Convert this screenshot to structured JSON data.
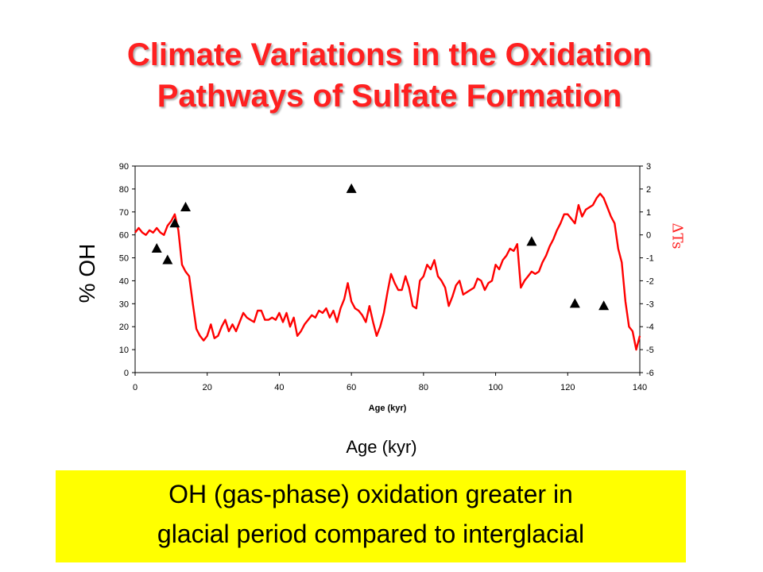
{
  "title": {
    "line1": "Climate Variations in the Oxidation",
    "line2": "Pathways of Sulfate Formation"
  },
  "caption_xlabel": "Age (kyr)",
  "banner": {
    "line1": "OH (gas-phase) oxidation greater in",
    "line2": "glacial period compared to interglacial",
    "background": "#ffff00"
  },
  "chart_data": {
    "type": "line",
    "xlabel": "Age (kyr)",
    "ylabel_left": "% OH",
    "ylabel_right": "ΔTs",
    "xlim": [
      0,
      140
    ],
    "ylim_left": [
      0,
      90
    ],
    "ylim_right": [
      -6,
      3
    ],
    "xticks": [
      0,
      20,
      40,
      60,
      80,
      100,
      120,
      140
    ],
    "yticks_left": [
      0,
      10,
      20,
      30,
      40,
      50,
      60,
      70,
      80,
      90
    ],
    "yticks_right": [
      3,
      2,
      1,
      0,
      -1,
      -2,
      -3,
      -4,
      -5,
      -6
    ],
    "series": [
      {
        "axis": "right",
        "color": "#ff0000",
        "x": [
          0,
          1,
          2,
          3,
          4,
          5,
          6,
          7,
          8,
          9,
          10,
          11,
          12,
          13,
          14,
          15,
          16,
          17,
          18,
          19,
          20,
          21,
          22,
          23,
          24,
          25,
          26,
          27,
          28,
          29,
          30,
          31,
          32,
          33,
          34,
          35,
          36,
          37,
          38,
          39,
          40,
          41,
          42,
          43,
          44,
          45,
          46,
          47,
          48,
          49,
          50,
          51,
          52,
          53,
          54,
          55,
          56,
          57,
          58,
          59,
          60,
          61,
          62,
          63,
          64,
          65,
          66,
          67,
          68,
          69,
          70,
          71,
          72,
          73,
          74,
          75,
          76,
          77,
          78,
          79,
          80,
          81,
          82,
          83,
          84,
          85,
          86,
          87,
          88,
          89,
          90,
          91,
          92,
          93,
          94,
          95,
          96,
          97,
          98,
          99,
          100,
          101,
          102,
          103,
          104,
          105,
          106,
          107,
          108,
          109,
          110,
          111,
          112,
          113,
          114,
          115,
          116,
          117,
          118,
          119,
          120,
          121,
          122,
          123,
          124,
          125,
          126,
          127,
          128,
          129,
          130,
          131,
          132,
          133,
          134,
          135,
          136,
          137,
          138,
          139,
          140
        ],
        "values": [
          0.1,
          0.3,
          0.1,
          0.0,
          0.2,
          0.1,
          0.3,
          0.1,
          0.0,
          0.4,
          0.6,
          0.9,
          0.2,
          -1.3,
          -1.6,
          -1.8,
          -3.0,
          -4.1,
          -4.4,
          -4.6,
          -4.4,
          -3.9,
          -4.5,
          -4.4,
          -4.0,
          -3.7,
          -4.2,
          -3.9,
          -4.2,
          -3.8,
          -3.4,
          -3.6,
          -3.7,
          -3.8,
          -3.3,
          -3.3,
          -3.7,
          -3.7,
          -3.6,
          -3.7,
          -3.4,
          -3.8,
          -3.4,
          -4.0,
          -3.6,
          -4.4,
          -4.2,
          -3.9,
          -3.7,
          -3.5,
          -3.6,
          -3.3,
          -3.4,
          -3.2,
          -3.6,
          -3.3,
          -3.8,
          -3.2,
          -2.8,
          -2.1,
          -2.9,
          -3.2,
          -3.3,
          -3.5,
          -3.8,
          -3.1,
          -3.8,
          -4.4,
          -4.0,
          -3.4,
          -2.5,
          -1.7,
          -2.1,
          -2.4,
          -2.4,
          -1.8,
          -2.3,
          -3.1,
          -3.2,
          -2.0,
          -1.8,
          -1.3,
          -1.5,
          -1.1,
          -1.8,
          -2.0,
          -2.3,
          -3.1,
          -2.7,
          -2.2,
          -2.0,
          -2.6,
          -2.5,
          -2.4,
          -2.3,
          -1.9,
          -2.0,
          -2.4,
          -2.1,
          -2.0,
          -1.3,
          -1.5,
          -1.1,
          -0.9,
          -0.6,
          -0.7,
          -0.4,
          -2.3,
          -2.0,
          -1.8,
          -1.6,
          -1.7,
          -1.6,
          -1.2,
          -0.9,
          -0.5,
          -0.2,
          0.2,
          0.5,
          0.9,
          0.9,
          0.7,
          0.5,
          1.3,
          0.8,
          1.1,
          1.2,
          1.3,
          1.6,
          1.8,
          1.6,
          1.2,
          0.8,
          0.5,
          -0.6,
          -1.2,
          -2.9,
          -4.0,
          -4.2,
          -5.0,
          -4.4
        ]
      }
    ],
    "markers": {
      "shape": "triangle",
      "color": "#000000",
      "axis": "left",
      "points": [
        [
          6,
          54
        ],
        [
          9,
          49
        ],
        [
          11,
          65
        ],
        [
          14,
          72
        ],
        [
          60,
          80
        ],
        [
          110,
          57
        ],
        [
          122,
          30
        ],
        [
          130,
          29
        ]
      ]
    },
    "grid": false
  }
}
